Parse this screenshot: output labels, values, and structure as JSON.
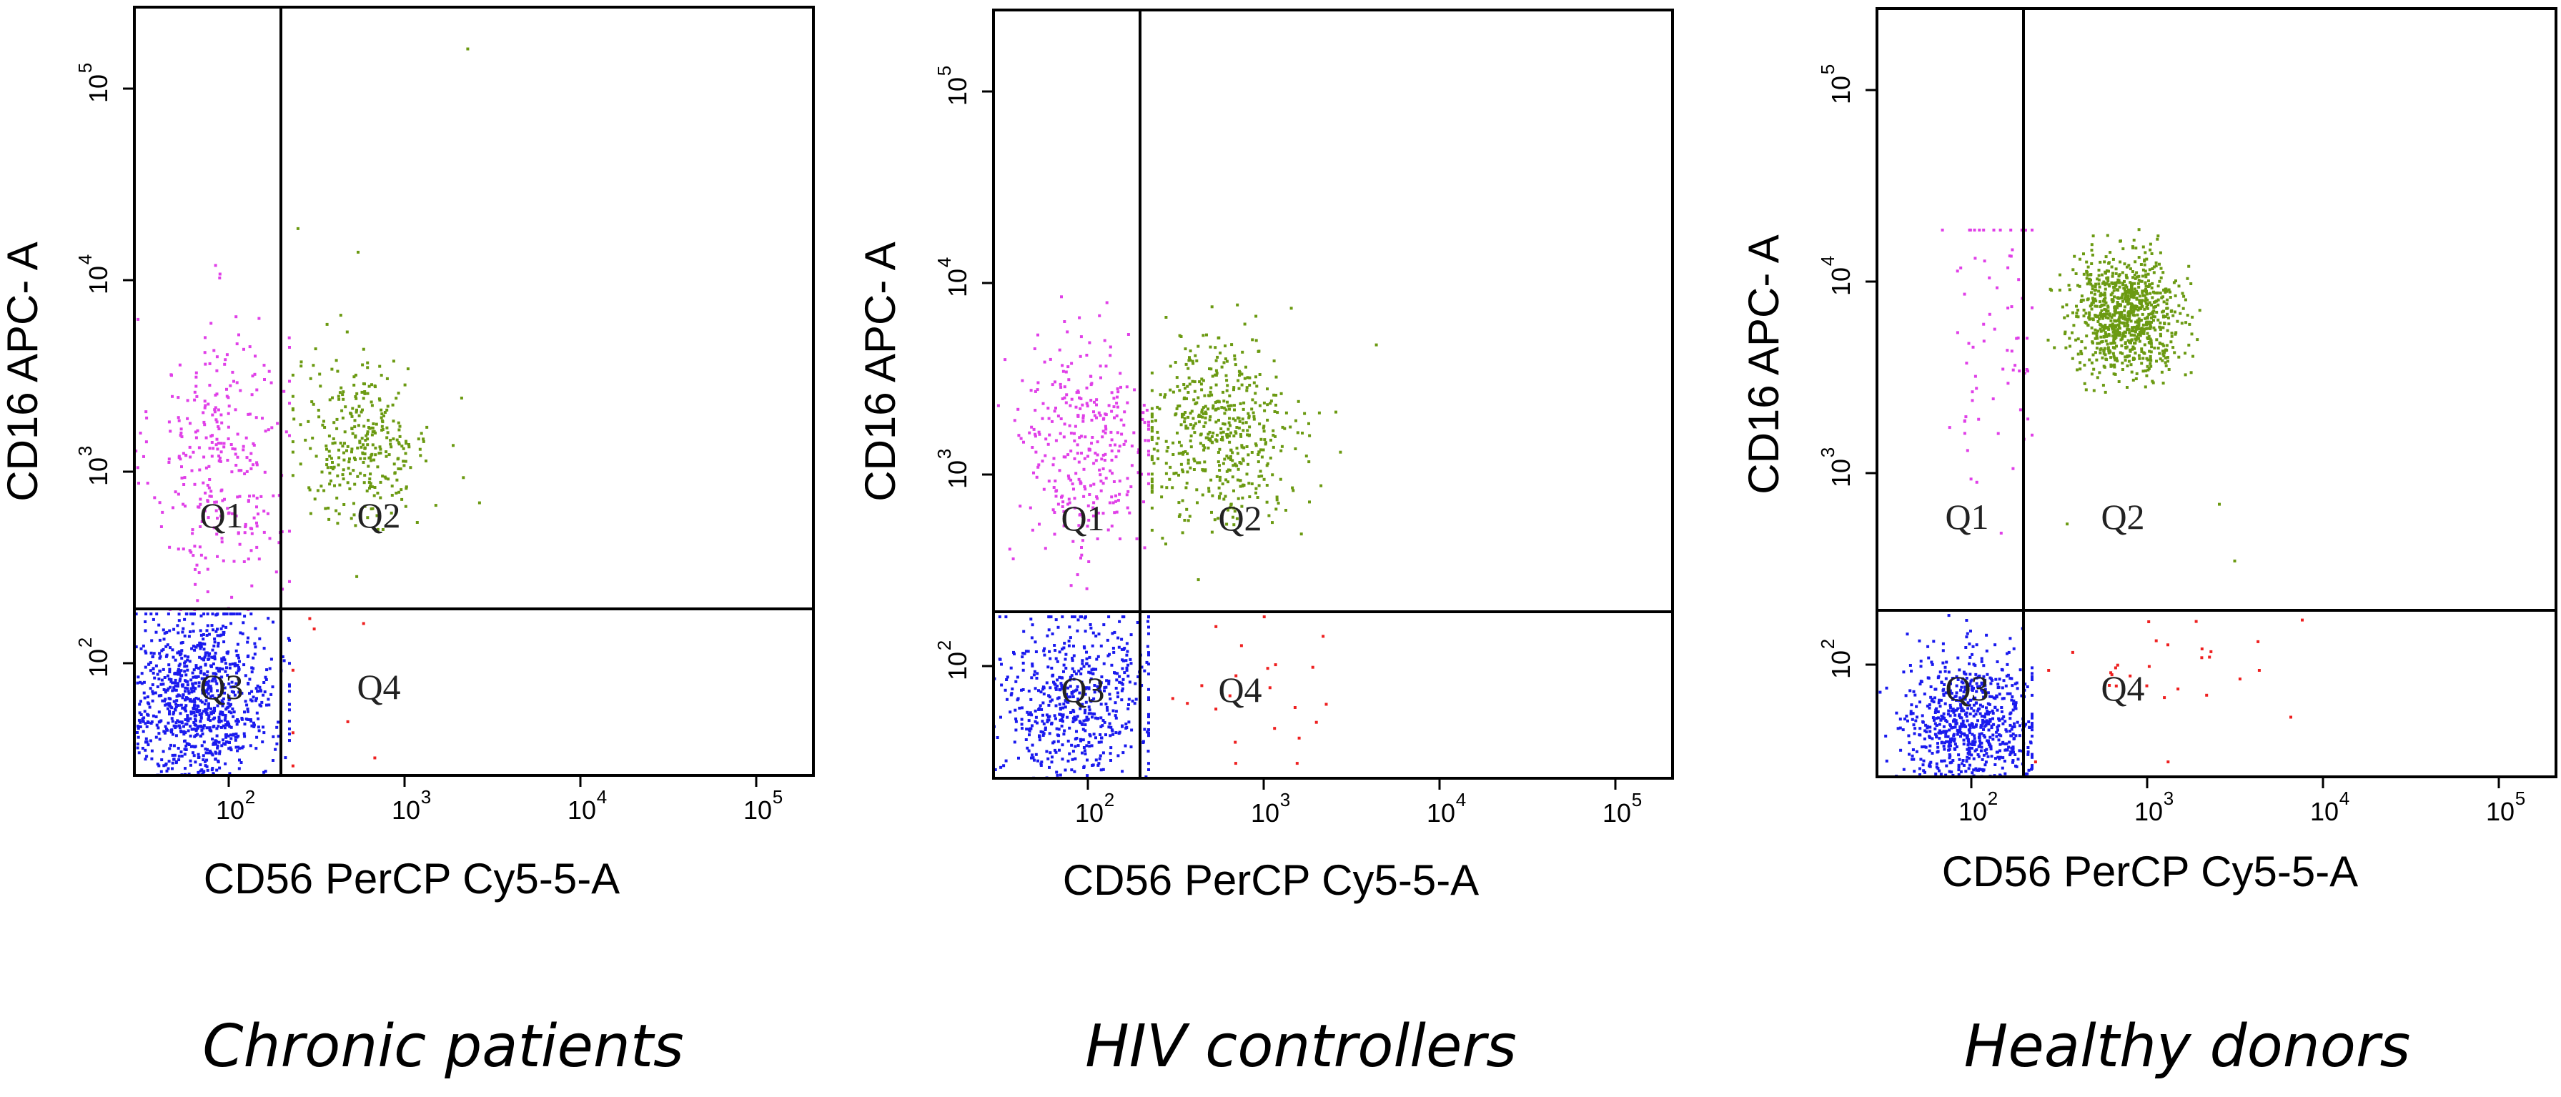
{
  "chart_data": [
    {
      "type": "scatter",
      "title": "Chronic patients",
      "xlabel": "CD56 PerCP Cy5-5-A",
      "ylabel": "CD16 APC- A",
      "xscale": "log",
      "yscale": "log",
      "xlim": [
        25,
        250000
      ],
      "ylim": [
        25,
        300000
      ],
      "gate": {
        "x": 210,
        "y": 185
      },
      "xticks": [
        {
          "base": "10",
          "exp": "2",
          "value": 100
        },
        {
          "base": "10",
          "exp": "3",
          "value": 1000
        },
        {
          "base": "10",
          "exp": "4",
          "value": 10000
        },
        {
          "base": "10",
          "exp": "5",
          "value": 100000
        }
      ],
      "yticks": [
        {
          "base": "10",
          "exp": "2",
          "value": 100
        },
        {
          "base": "10",
          "exp": "3",
          "value": 1000
        },
        {
          "base": "10",
          "exp": "4",
          "value": 10000
        },
        {
          "base": "10",
          "exp": "5",
          "value": 100000
        }
      ],
      "quadrants": [
        {
          "label": "Q1",
          "x": 70,
          "y": 650
        },
        {
          "label": "Q2",
          "x": 550,
          "y": 650
        },
        {
          "label": "Q3",
          "x": 70,
          "y": 95
        },
        {
          "label": "Q4",
          "x": 550,
          "y": 95
        }
      ],
      "series": [
        {
          "name": "Q1",
          "color": "#e040e8",
          "cx": 80,
          "cy": 1200,
          "sx": 0.2,
          "sy": 0.38,
          "n": 300,
          "xrange": [
            25,
            205
          ],
          "yrange": [
            190,
            18000
          ]
        },
        {
          "name": "Q2",
          "color": "#6b9a12",
          "cx": 560,
          "cy": 1500,
          "sx": 0.2,
          "sy": 0.22,
          "n": 320,
          "xrange": [
            215,
            4000
          ],
          "yrange": [
            190,
            25000
          ]
        },
        {
          "name": "Q3",
          "color": "#1a1aee",
          "cx": 60,
          "cy": 60,
          "sx": 0.22,
          "sy": 0.24,
          "n": 1000,
          "xrange": [
            25,
            205
          ],
          "yrange": [
            25,
            180
          ]
        },
        {
          "name": "Q4",
          "color": "#ee2020",
          "cx": 300,
          "cy": 60,
          "sx": 0.2,
          "sy": 0.25,
          "n": 6,
          "xrange": [
            215,
            2000
          ],
          "yrange": [
            25,
            180
          ]
        }
      ],
      "outliers": [
        {
          "color": "#6b9a12",
          "x": 2300,
          "y": 180000
        },
        {
          "color": "#6b9a12",
          "x": 230,
          "y": 20000
        },
        {
          "color": "#6b9a12",
          "x": 520,
          "y": 15000
        },
        {
          "color": "#6b9a12",
          "x": 2700,
          "y": 700
        },
        {
          "color": "#ee2020",
          "x": 270,
          "y": 170
        },
        {
          "color": "#ee2020",
          "x": 560,
          "y": 160
        }
      ]
    },
    {
      "type": "scatter",
      "title": "HIV controllers",
      "xlabel": "CD56 PerCP Cy5-5-A",
      "ylabel": "CD16 APC- A",
      "xscale": "log",
      "yscale": "log",
      "xlim": [
        25,
        250000
      ],
      "ylim": [
        25,
        300000
      ],
      "gate": {
        "x": 210,
        "y": 185
      },
      "xticks": [
        {
          "base": "10",
          "exp": "2",
          "value": 100
        },
        {
          "base": "10",
          "exp": "3",
          "value": 1000
        },
        {
          "base": "10",
          "exp": "4",
          "value": 10000
        },
        {
          "base": "10",
          "exp": "5",
          "value": 100000
        }
      ],
      "yticks": [
        {
          "base": "10",
          "exp": "2",
          "value": 100
        },
        {
          "base": "10",
          "exp": "3",
          "value": 1000
        },
        {
          "base": "10",
          "exp": "4",
          "value": 10000
        },
        {
          "base": "10",
          "exp": "5",
          "value": 100000
        }
      ],
      "quadrants": [
        {
          "label": "Q1",
          "x": 70,
          "y": 650
        },
        {
          "label": "Q2",
          "x": 550,
          "y": 650
        },
        {
          "label": "Q3",
          "x": 70,
          "y": 95
        },
        {
          "label": "Q4",
          "x": 550,
          "y": 95
        }
      ],
      "series": [
        {
          "name": "Q1",
          "color": "#e040e8",
          "cx": 85,
          "cy": 1400,
          "sx": 0.22,
          "sy": 0.33,
          "n": 320,
          "xrange": [
            25,
            205
          ],
          "yrange": [
            190,
            9000
          ]
        },
        {
          "name": "Q2",
          "color": "#6b9a12",
          "cx": 520,
          "cy": 1700,
          "sx": 0.23,
          "sy": 0.24,
          "n": 520,
          "xrange": [
            215,
            5000
          ],
          "yrange": [
            190,
            10000
          ]
        },
        {
          "name": "Q3",
          "color": "#1a1aee",
          "cx": 75,
          "cy": 65,
          "sx": 0.23,
          "sy": 0.25,
          "n": 600,
          "xrange": [
            25,
            205
          ],
          "yrange": [
            25,
            180
          ]
        },
        {
          "name": "Q4",
          "color": "#ee2020",
          "cx": 800,
          "cy": 70,
          "sx": 0.3,
          "sy": 0.22,
          "n": 22,
          "xrange": [
            215,
            5000
          ],
          "yrange": [
            30,
            180
          ]
        }
      ],
      "outliers": [
        {
          "color": "#6b9a12",
          "x": 4500,
          "y": 5000
        },
        {
          "color": "#6b9a12",
          "x": 2600,
          "y": 2200
        }
      ]
    },
    {
      "type": "scatter",
      "title": "Healthy donors",
      "xlabel": "CD56 PerCP Cy5-5-A",
      "ylabel": "CD16 APC- A",
      "xscale": "log",
      "yscale": "log",
      "xlim": [
        25,
        250000
      ],
      "ylim": [
        25,
        300000
      ],
      "gate": {
        "x": 210,
        "y": 185
      },
      "xticks": [
        {
          "base": "10",
          "exp": "2",
          "value": 100
        },
        {
          "base": "10",
          "exp": "3",
          "value": 1000
        },
        {
          "base": "10",
          "exp": "4",
          "value": 10000
        },
        {
          "base": "10",
          "exp": "5",
          "value": 100000
        }
      ],
      "yticks": [
        {
          "base": "10",
          "exp": "2",
          "value": 100
        },
        {
          "base": "10",
          "exp": "3",
          "value": 1000
        },
        {
          "base": "10",
          "exp": "4",
          "value": 10000
        },
        {
          "base": "10",
          "exp": "5",
          "value": 100000
        }
      ],
      "quadrants": [
        {
          "label": "Q1",
          "x": 70,
          "y": 650
        },
        {
          "label": "Q2",
          "x": 550,
          "y": 650
        },
        {
          "label": "Q3",
          "x": 70,
          "y": 95
        },
        {
          "label": "Q4",
          "x": 550,
          "y": 95
        }
      ],
      "series": [
        {
          "name": "Q1",
          "color": "#e040e8",
          "cx": 120,
          "cy": 6000,
          "sx": 0.15,
          "sy": 0.45,
          "n": 70,
          "xrange": [
            25,
            205
          ],
          "yrange": [
            190,
            20000
          ]
        },
        {
          "name": "Q2",
          "color": "#6b9a12",
          "cx": 750,
          "cy": 7200,
          "sx": 0.16,
          "sy": 0.15,
          "n": 900,
          "xrange": [
            215,
            6000
          ],
          "yrange": [
            1500,
            25000
          ]
        },
        {
          "name": "Q3",
          "color": "#1a1aee",
          "cx": 90,
          "cy": 45,
          "sx": 0.2,
          "sy": 0.2,
          "n": 800,
          "xrange": [
            25,
            205
          ],
          "yrange": [
            25,
            180
          ]
        },
        {
          "name": "Q4",
          "color": "#ee2020",
          "cx": 1100,
          "cy": 80,
          "sx": 0.35,
          "sy": 0.2,
          "n": 28,
          "xrange": [
            215,
            8000
          ],
          "yrange": [
            30,
            180
          ]
        }
      ],
      "outliers": [
        {
          "color": "#6b9a12",
          "x": 330,
          "y": 550
        },
        {
          "color": "#6b9a12",
          "x": 2600,
          "y": 700
        },
        {
          "color": "#6b9a12",
          "x": 3200,
          "y": 350
        },
        {
          "color": "#ee2020",
          "x": 8000,
          "y": 170
        }
      ]
    }
  ]
}
